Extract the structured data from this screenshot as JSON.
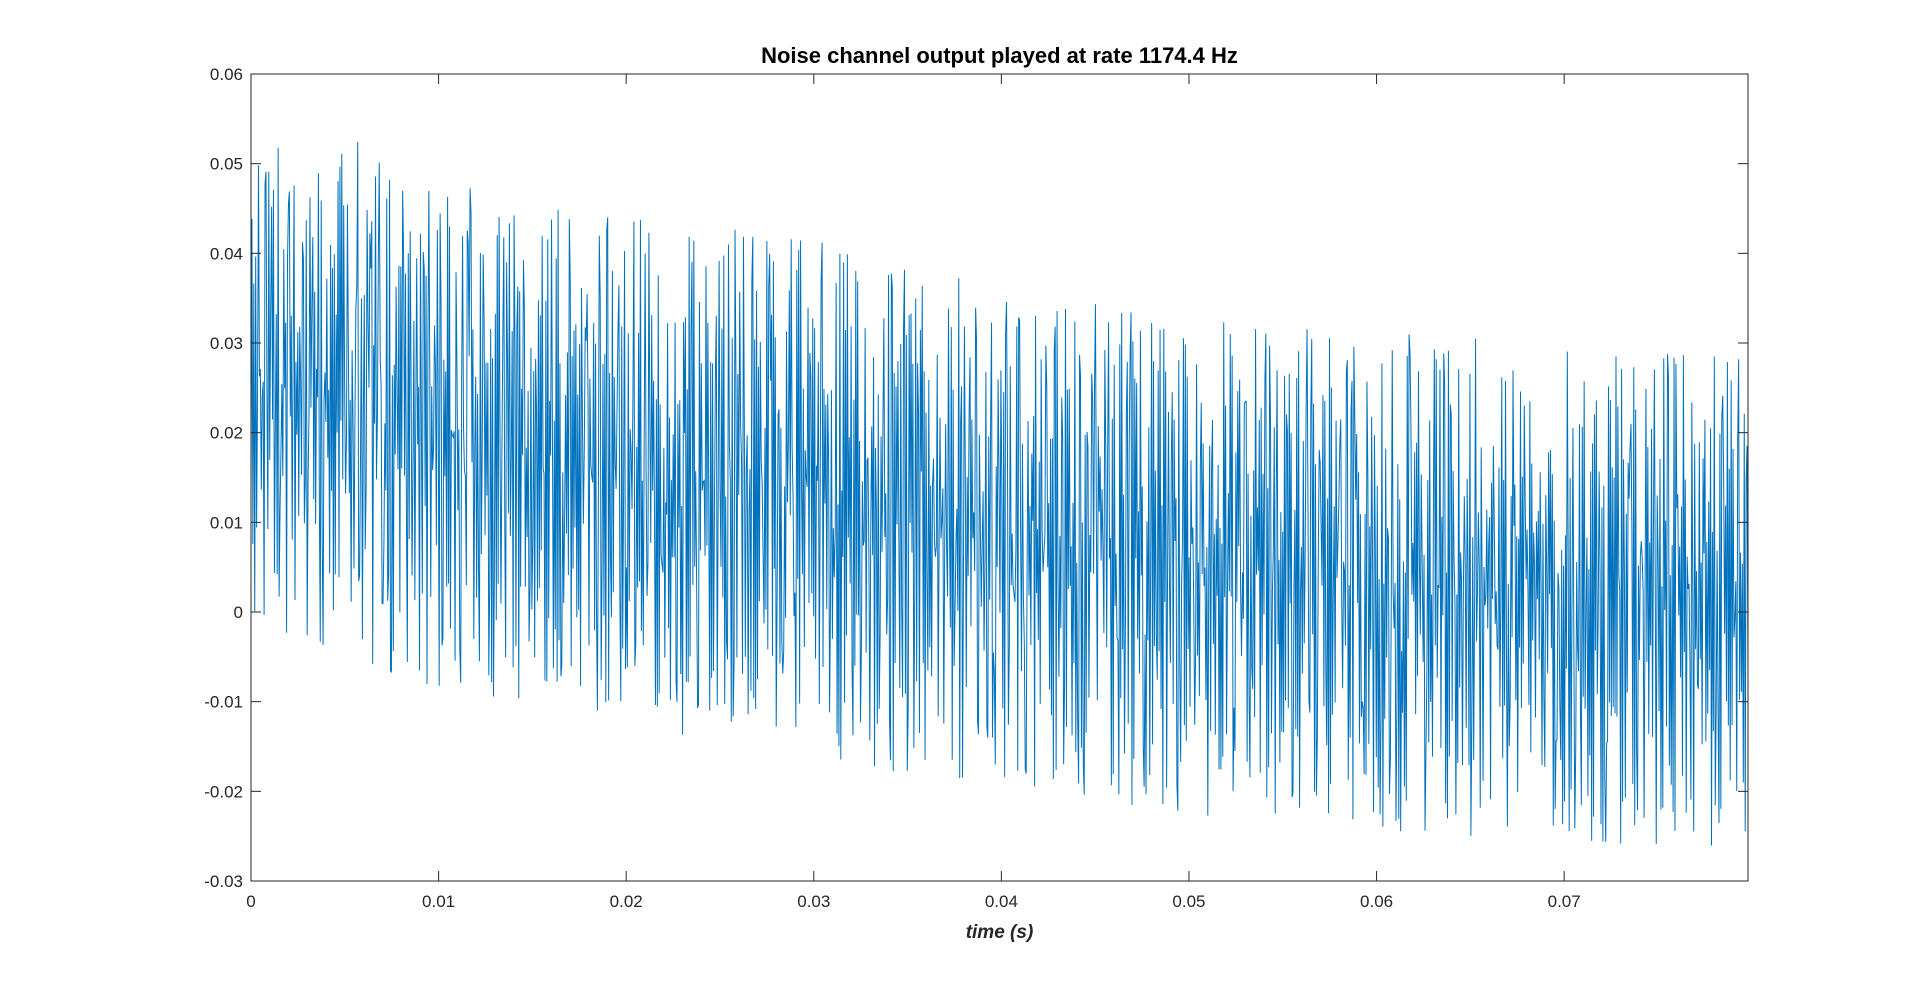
{
  "chart_data": {
    "type": "line",
    "title": "Noise channel output played at rate 1174.4 Hz",
    "xlabel": "time (s)",
    "ylabel": "",
    "xlim": [
      0,
      0.0798
    ],
    "ylim": [
      -0.03,
      0.06
    ],
    "xticks": [
      0,
      0.01,
      0.02,
      0.03,
      0.04,
      0.05,
      0.06,
      0.07
    ],
    "xtick_labels": [
      "0",
      "0.01",
      "0.02",
      "0.03",
      "0.04",
      "0.05",
      "0.06",
      "0.07"
    ],
    "yticks": [
      -0.03,
      -0.02,
      -0.01,
      0,
      0.01,
      0.02,
      0.03,
      0.04,
      0.05,
      0.06
    ],
    "ytick_labels": [
      "-0.03",
      "-0.02",
      "-0.01",
      "0",
      "0.01",
      "0.02",
      "0.03",
      "0.04",
      "0.05",
      "0.06"
    ],
    "grid": false,
    "legend": "none",
    "series": [
      {
        "color": "#0072BD",
        "sample_count": 1600,
        "upper_envelope": [
          [
            0,
            0.053
          ],
          [
            0.002,
            0.055
          ],
          [
            0.006,
            0.055
          ],
          [
            0.011,
            0.051
          ],
          [
            0.019,
            0.047
          ],
          [
            0.028,
            0.045
          ],
          [
            0.04,
            0.039
          ],
          [
            0.05,
            0.036
          ],
          [
            0.06,
            0.034
          ],
          [
            0.07,
            0.032
          ],
          [
            0.0798,
            0.031
          ]
        ],
        "lower_envelope": [
          [
            0,
            -0.003
          ],
          [
            0.005,
            -0.008
          ],
          [
            0.01,
            -0.011
          ],
          [
            0.02,
            -0.015
          ],
          [
            0.03,
            -0.019
          ],
          [
            0.04,
            -0.022
          ],
          [
            0.05,
            -0.025
          ],
          [
            0.06,
            -0.027
          ],
          [
            0.07,
            -0.028
          ],
          [
            0.0798,
            -0.029
          ]
        ]
      }
    ]
  },
  "colors": {
    "line": "#0072BD",
    "axes": "#262626",
    "background": "#ffffff"
  }
}
